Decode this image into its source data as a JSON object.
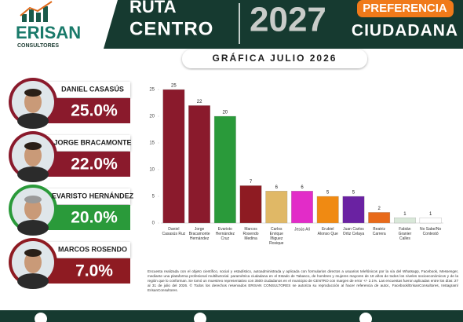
{
  "logo": {
    "name": "ERISAN",
    "sub": "CONSULTORES"
  },
  "header": {
    "line1": "RUTA",
    "line2": "CENTRO",
    "year": "2027",
    "badge": "PREFERENCIA",
    "line3": "CIUDADANA"
  },
  "subtitle": "GRÁFICA JULIO 2026",
  "candidates": [
    {
      "name": "DANIEL CASASÚS",
      "percent": "25.0%"
    },
    {
      "name": "JORGE BRACAMONTE",
      "percent": "22.0%"
    },
    {
      "name": "EVARISTO HERNÁNDEZ",
      "percent": "20.0%"
    },
    {
      "name": "MARCOS ROSENDO",
      "percent": "7.0%"
    }
  ],
  "chart_data": {
    "type": "bar",
    "categories": [
      "Daniel\nCasasús Ruz",
      "Jorge\nBracamonte\nHernández",
      "Evaristo\nHernández\nCruz",
      "Marcos\nRosendo\nMedina",
      "Carlos\nEnrique\nÍñiguez\nRosique",
      "Jesús Alí",
      "Erubiel\nAlonso Que",
      "Juan Carlos\nOrtiz Celaya",
      "Beatriz\nCarrera",
      "Fabián\nGranier\nCalles",
      "No Sabe/No\nContestó"
    ],
    "values": [
      25,
      22,
      20,
      7,
      6,
      6,
      5,
      5,
      2,
      1,
      1
    ],
    "colors": [
      "#8a1a2c",
      "#8a1a2c",
      "#2a9a3a",
      "#8e1b22",
      "#e0b866",
      "#e22cc8",
      "#f08a12",
      "#6a22a2",
      "#e86a1a",
      "#d9e8d9",
      "#ffffff"
    ],
    "ylim": [
      0,
      25
    ],
    "yticks": [
      0,
      5,
      10,
      15,
      20,
      25
    ],
    "grid": false
  },
  "footnote": "Encuesta realizada con el objeto científico, social y estadístico, autoadministrada y aplicada con formularios directos a usuarios telefónicos por la vía del Whatsapp, Facebook, Messenger, mediante una plataforma profesional multifactorial. paramétrica ciudadana en el Estado de Tabasco, de hombres y mujeres mayores de 18 años de todos los niveles socioeconómicos y de la región que lo conforman. Se tomó un muestreo representativo con 3500 ciudadanos en el municipio de CENTRO con margen de error +/- 2.1%. Las encuestas fueron aplicadas entre los días: 27 al 31 de julio del 2026. © Todos los derechos reservados ERISAN CONSULTORES se autoriza su reproducción al hacer referencia de autor., Facebook/ErisanConsultores, Instagram/ ErisanConsultores."
}
